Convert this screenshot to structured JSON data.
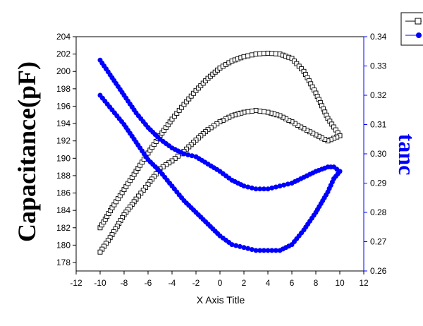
{
  "chart_data": {
    "type": "scatter",
    "xlabel": "X Axis Title",
    "ylabel_left": "Capacitance(pF)",
    "ylabel_right": "tanc",
    "xlim": [
      -12,
      12
    ],
    "ylim_left": [
      177,
      204
    ],
    "ylim_right": [
      0.26,
      0.34
    ],
    "x_ticks": [
      -12,
      -10,
      -8,
      -6,
      -4,
      -2,
      0,
      2,
      4,
      6,
      8,
      10,
      12
    ],
    "y_left_ticks": [
      178,
      180,
      182,
      184,
      186,
      188,
      190,
      192,
      194,
      196,
      198,
      200,
      202,
      204
    ],
    "y_right_ticks": [
      0.26,
      0.27,
      0.28,
      0.29,
      0.3,
      0.31,
      0.32,
      0.33,
      0.34
    ],
    "legend_position": "top-right",
    "grid": false,
    "colors": {
      "left_series": "#000000",
      "right_series": "#0000ff",
      "right_axis": "#0000ff"
    },
    "series": [
      {
        "axis": "left",
        "marker": "open-square",
        "color": "#000000",
        "x": [
          -10,
          -9,
          -8,
          -7,
          -6,
          -5,
          -4,
          -3,
          -2,
          -1,
          0,
          1,
          2,
          3,
          4,
          5,
          6,
          7,
          8,
          9,
          10,
          10,
          9,
          8,
          7,
          6,
          5,
          4,
          3,
          2,
          1,
          0,
          -1,
          -2,
          -3,
          -4,
          -5,
          -6,
          -7,
          -8,
          -9,
          -10
        ],
        "y": [
          182.0,
          184.3,
          186.4,
          188.5,
          190.6,
          192.6,
          194.5,
          196.2,
          197.8,
          199.2,
          200.4,
          201.2,
          201.7,
          202.0,
          202.1,
          202.0,
          201.5,
          200.0,
          197.5,
          194.6,
          192.6,
          192.6,
          192.0,
          192.7,
          193.4,
          194.2,
          194.9,
          195.3,
          195.5,
          195.3,
          194.9,
          194.2,
          193.3,
          192.1,
          190.8,
          189.7,
          188.8,
          187.0,
          185.3,
          183.5,
          181.2,
          179.2
        ]
      },
      {
        "axis": "right",
        "marker": "filled-circle",
        "color": "#0000ff",
        "x": [
          -10,
          -9,
          -8,
          -7,
          -6,
          -5,
          -4,
          -3,
          -2,
          -1,
          0,
          1,
          2,
          3,
          4,
          5,
          6,
          7,
          8,
          9,
          9.5,
          10,
          10,
          9.5,
          9,
          8,
          7,
          6,
          5,
          4,
          3,
          2,
          1,
          0,
          -1,
          -2,
          -3,
          -4,
          -5,
          -6,
          -7,
          -8,
          -9,
          -10
        ],
        "y": [
          0.332,
          0.326,
          0.32,
          0.314,
          0.309,
          0.305,
          0.302,
          0.3,
          0.299,
          0.2965,
          0.294,
          0.291,
          0.289,
          0.288,
          0.288,
          0.289,
          0.29,
          0.292,
          0.294,
          0.2955,
          0.2955,
          0.294,
          0.294,
          0.2915,
          0.287,
          0.28,
          0.274,
          0.269,
          0.267,
          0.267,
          0.267,
          0.268,
          0.269,
          0.272,
          0.276,
          0.28,
          0.284,
          0.289,
          0.294,
          0.298,
          0.304,
          0.31,
          0.315,
          0.32
        ]
      }
    ]
  }
}
